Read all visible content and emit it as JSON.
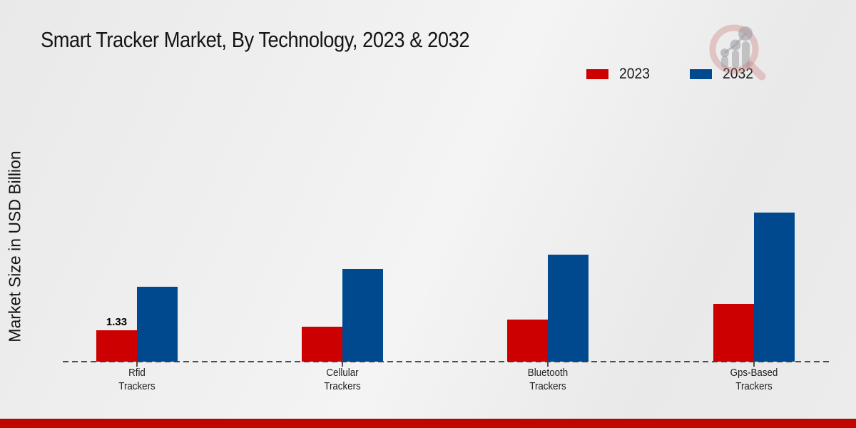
{
  "title": "Smart Tracker Market, By Technology, 2023 & 2032",
  "ylabel": "Market Size in USD Billion",
  "legend": {
    "items": [
      {
        "label": "2023",
        "color": "#cc0000"
      },
      {
        "label": "2032",
        "color": "#00498e"
      }
    ]
  },
  "branding": {
    "logo_icon": "magnifier-growth-chart-watermark",
    "accent_strip_color": "#bf0600"
  },
  "chart_data": {
    "type": "bar",
    "title": "Smart Tracker Market, By Technology, 2023 & 2032",
    "xlabel": "",
    "ylabel": "Market Size in USD Billion",
    "categories": [
      "Rfid Trackers",
      "Cellular Trackers",
      "Bluetooth Trackers",
      "Gps-Based Trackers"
    ],
    "series": [
      {
        "name": "2023",
        "color": "#cc0000",
        "values": [
          1.33,
          1.47,
          1.78,
          2.46
        ]
      },
      {
        "name": "2032",
        "color": "#00498e",
        "values": [
          3.16,
          3.93,
          4.52,
          6.32
        ]
      }
    ],
    "data_labels": [
      {
        "series": "2023",
        "category": "Rfid Trackers",
        "text": "1.33"
      }
    ],
    "ylim": [
      0,
      8
    ],
    "grid": false,
    "axis_style": "dashed-baseline-only",
    "legend_position": "top-right"
  }
}
